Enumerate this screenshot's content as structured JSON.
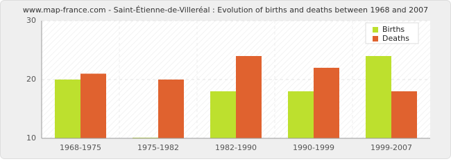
{
  "chart_data": {
    "type": "bar",
    "title": "www.map-france.com - Saint-Étienne-de-Villeréal : Evolution of births and deaths between 1968 and 2007",
    "categories": [
      "1968-1975",
      "1975-1982",
      "1982-1990",
      "1990-1999",
      "1999-2007"
    ],
    "series": [
      {
        "name": "Births",
        "color": "#bde02e",
        "values": [
          20,
          10,
          18,
          18,
          24
        ]
      },
      {
        "name": "Deaths",
        "color": "#e0622f",
        "values": [
          21,
          20,
          24,
          22,
          18
        ]
      }
    ],
    "ylim": [
      10,
      30
    ],
    "yticks": [
      10,
      20,
      30
    ],
    "grid": true,
    "legend": "top-right"
  }
}
